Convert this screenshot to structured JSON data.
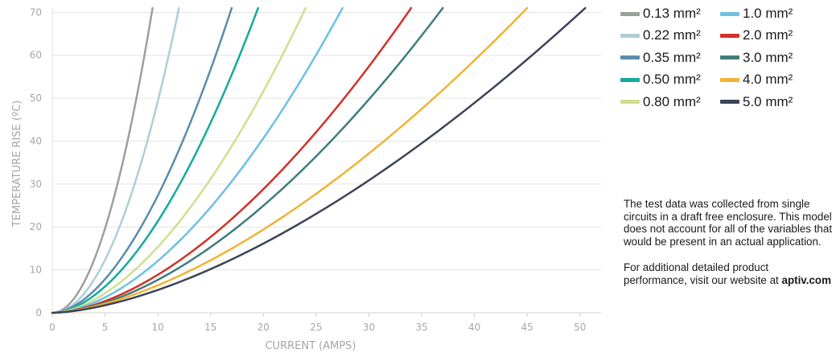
{
  "chart_data": {
    "type": "line",
    "xlabel": "CURRENT (AMPS)",
    "ylabel": "TEMPERATURE RISE (ºC)",
    "xlim": [
      0,
      52
    ],
    "ylim": [
      0,
      71
    ],
    "xticks": [
      0,
      5,
      10,
      15,
      20,
      25,
      30,
      35,
      40,
      45,
      50
    ],
    "yticks": [
      0,
      10,
      20,
      30,
      40,
      50,
      60,
      70
    ],
    "grid": "horizontal",
    "legend_position": "right",
    "series": [
      {
        "name": "0.13 mm²",
        "color": "#9aa19a",
        "exponent": 2.0,
        "points": [
          [
            0,
            0
          ],
          [
            2,
            2.5
          ],
          [
            4,
            10
          ],
          [
            6,
            23
          ],
          [
            8,
            41.5
          ],
          [
            9.5,
            71
          ]
        ]
      },
      {
        "name": "0.22 mm²",
        "color": "#adcfd7",
        "exponent": 2.0,
        "points": [
          [
            0,
            0
          ],
          [
            3,
            3.5
          ],
          [
            6,
            15.5
          ],
          [
            9,
            36.5
          ],
          [
            12,
            71
          ]
        ]
      },
      {
        "name": "0.35 mm²",
        "color": "#5b8cac",
        "exponent": 1.8,
        "points": [
          [
            0,
            0
          ],
          [
            4,
            3.5
          ],
          [
            8,
            14
          ],
          [
            12,
            32
          ],
          [
            15,
            49
          ],
          [
            17,
            71
          ]
        ]
      },
      {
        "name": "0.50 mm²",
        "color": "#13aaa1",
        "exponent": 1.8,
        "points": [
          [
            0,
            0
          ],
          [
            5,
            5
          ],
          [
            10,
            17
          ],
          [
            15,
            37
          ],
          [
            19.5,
            71
          ]
        ]
      },
      {
        "name": "0.80 mm²",
        "color": "#cfe08d",
        "exponent": 1.75,
        "points": [
          [
            0,
            0
          ],
          [
            6,
            5
          ],
          [
            12,
            17
          ],
          [
            18,
            36
          ],
          [
            24,
            71
          ]
        ]
      },
      {
        "name": "1.0 mm²",
        "color": "#6cc1e3",
        "exponent": 1.75,
        "points": [
          [
            0,
            0
          ],
          [
            7,
            5
          ],
          [
            14,
            16.5
          ],
          [
            21,
            37
          ],
          [
            27.5,
            71
          ]
        ]
      },
      {
        "name": "2.0 mm²",
        "color": "#d0322a",
        "exponent": 1.7,
        "points": [
          [
            0,
            0
          ],
          [
            8,
            5
          ],
          [
            16,
            16
          ],
          [
            24,
            33
          ],
          [
            34,
            71
          ]
        ]
      },
      {
        "name": "3.0 mm²",
        "color": "#3f7d7a",
        "exponent": 1.7,
        "points": [
          [
            0,
            0
          ],
          [
            9,
            5.5
          ],
          [
            18,
            17
          ],
          [
            27,
            35
          ],
          [
            37,
            71
          ]
        ]
      },
      {
        "name": "4.0 mm²",
        "color": "#f2b233",
        "exponent": 1.6,
        "points": [
          [
            0,
            0
          ],
          [
            10,
            5
          ],
          [
            20,
            15.5
          ],
          [
            30,
            30
          ],
          [
            45,
            71
          ]
        ]
      },
      {
        "name": "5.0 mm²",
        "color": "#3c4458",
        "exponent": 1.6,
        "points": [
          [
            0,
            0
          ],
          [
            10,
            4.5
          ],
          [
            20,
            13.5
          ],
          [
            30,
            26
          ],
          [
            40,
            44
          ],
          [
            50.5,
            71
          ]
        ]
      }
    ]
  },
  "note": {
    "paragraph1": "The test data was collected from single circuits in a draft free enclosure. This model does not account for all of the variables that would be present in an actual application.",
    "paragraph2_text": "For additional detailed product performance, visit our website at",
    "paragraph2_link": "aptiv.com"
  }
}
